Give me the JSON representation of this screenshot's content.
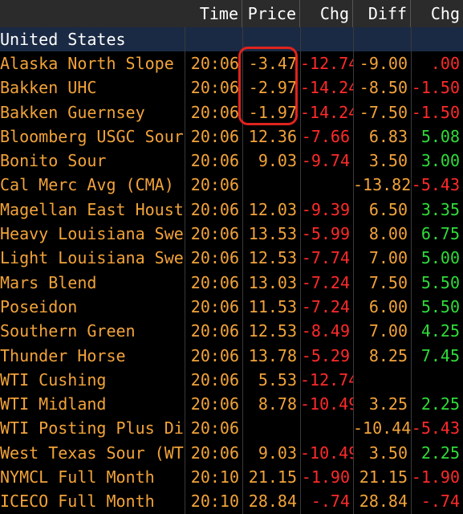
{
  "header": {
    "time": "Time",
    "price": "Price",
    "chg": "Chg",
    "diff": "Diff",
    "chg2": "Chg"
  },
  "section": {
    "title": "United States"
  },
  "rows": [
    {
      "name": "Alaska North Slope",
      "time": "20:06",
      "price": "-3.47",
      "chg": "-12.74",
      "chg_sign": "neg",
      "diff": "-9.00",
      "chg2": ".00",
      "chg2_sign": "neg"
    },
    {
      "name": "Bakken UHC",
      "time": "20:06",
      "price": "-2.97",
      "chg": "-14.24",
      "chg_sign": "neg",
      "diff": "-8.50",
      "chg2": "-1.50",
      "chg2_sign": "neg"
    },
    {
      "name": "Bakken Guernsey",
      "time": "20:06",
      "price": "-1.97",
      "chg": "-14.24",
      "chg_sign": "neg",
      "diff": "-7.50",
      "chg2": "-1.50",
      "chg2_sign": "neg"
    },
    {
      "name": "Bloomberg USGC Sour Ind",
      "time": "20:06",
      "price": "12.36",
      "chg": "-7.66",
      "chg_sign": "neg",
      "diff": "6.83",
      "chg2": "5.08",
      "chg2_sign": "pos"
    },
    {
      "name": "Bonito Sour",
      "time": "20:06",
      "price": "9.03",
      "chg": "-9.74",
      "chg_sign": "neg",
      "diff": "3.50",
      "chg2": "3.00",
      "chg2_sign": "pos"
    },
    {
      "name": "Cal Merc Avg (CMA) Diff",
      "time": "20:06",
      "price": "",
      "chg": "",
      "chg_sign": "neg",
      "diff": "-13.82",
      "chg2": "-5.43",
      "chg2_sign": "neg"
    },
    {
      "name": "Magellan East Houston",
      "time": "20:06",
      "price": "12.03",
      "chg": "-9.39",
      "chg_sign": "neg",
      "diff": "6.50",
      "chg2": "3.35",
      "chg2_sign": "pos"
    },
    {
      "name": "Heavy Louisiana Sweet (H",
      "time": "20:06",
      "price": "13.53",
      "chg": "-5.99",
      "chg_sign": "neg",
      "diff": "8.00",
      "chg2": "6.75",
      "chg2_sign": "pos"
    },
    {
      "name": "Light Louisiana Sweet (LL",
      "time": "20:06",
      "price": "12.53",
      "chg": "-7.74",
      "chg_sign": "neg",
      "diff": "7.00",
      "chg2": "5.00",
      "chg2_sign": "pos"
    },
    {
      "name": "Mars Blend",
      "time": "20:06",
      "price": "13.03",
      "chg": "-7.24",
      "chg_sign": "neg",
      "diff": "7.50",
      "chg2": "5.50",
      "chg2_sign": "pos"
    },
    {
      "name": "Poseidon",
      "time": "20:06",
      "price": "11.53",
      "chg": "-7.24",
      "chg_sign": "neg",
      "diff": "6.00",
      "chg2": "5.50",
      "chg2_sign": "pos"
    },
    {
      "name": "Southern Green",
      "time": "20:06",
      "price": "12.53",
      "chg": "-8.49",
      "chg_sign": "neg",
      "diff": "7.00",
      "chg2": "4.25",
      "chg2_sign": "pos"
    },
    {
      "name": "Thunder Horse",
      "time": "20:06",
      "price": "13.78",
      "chg": "-5.29",
      "chg_sign": "neg",
      "diff": "8.25",
      "chg2": "7.45",
      "chg2_sign": "pos"
    },
    {
      "name": "WTI Cushing",
      "time": "20:06",
      "price": "5.53",
      "chg": "-12.74",
      "chg_sign": "neg",
      "diff": "",
      "chg2": "",
      "chg2_sign": "pos"
    },
    {
      "name": "WTI Midland",
      "time": "20:06",
      "price": "8.78",
      "chg": "-10.49",
      "chg_sign": "neg",
      "diff": "3.25",
      "chg2": "2.25",
      "chg2_sign": "pos"
    },
    {
      "name": "WTI Posting Plus Diff",
      "time": "20:06",
      "price": "",
      "chg": "",
      "chg_sign": "neg",
      "diff": "-10.44",
      "chg2": "-5.43",
      "chg2_sign": "neg"
    },
    {
      "name": "West Texas Sour (WTS)",
      "time": "20:06",
      "price": "9.03",
      "chg": "-10.49",
      "chg_sign": "neg",
      "diff": "3.50",
      "chg2": "2.25",
      "chg2_sign": "pos"
    },
    {
      "name": "NYMCL Full Month",
      "time": "20:10",
      "price": "21.15",
      "chg": "-1.90",
      "chg_sign": "neg",
      "diff": "21.15",
      "chg2": "-1.90",
      "chg2_sign": "neg"
    },
    {
      "name": "ICECO Full Month",
      "time": "20:10",
      "price": "28.84",
      "chg": "-.74",
      "chg_sign": "neg",
      "diff": "28.84",
      "chg2": "-.74",
      "chg2_sign": "neg"
    }
  ],
  "colors": {
    "text": "#f2a33a",
    "negative": "#ff2a2a",
    "positive": "#2fdc3a",
    "highlight": "#e0231e"
  }
}
